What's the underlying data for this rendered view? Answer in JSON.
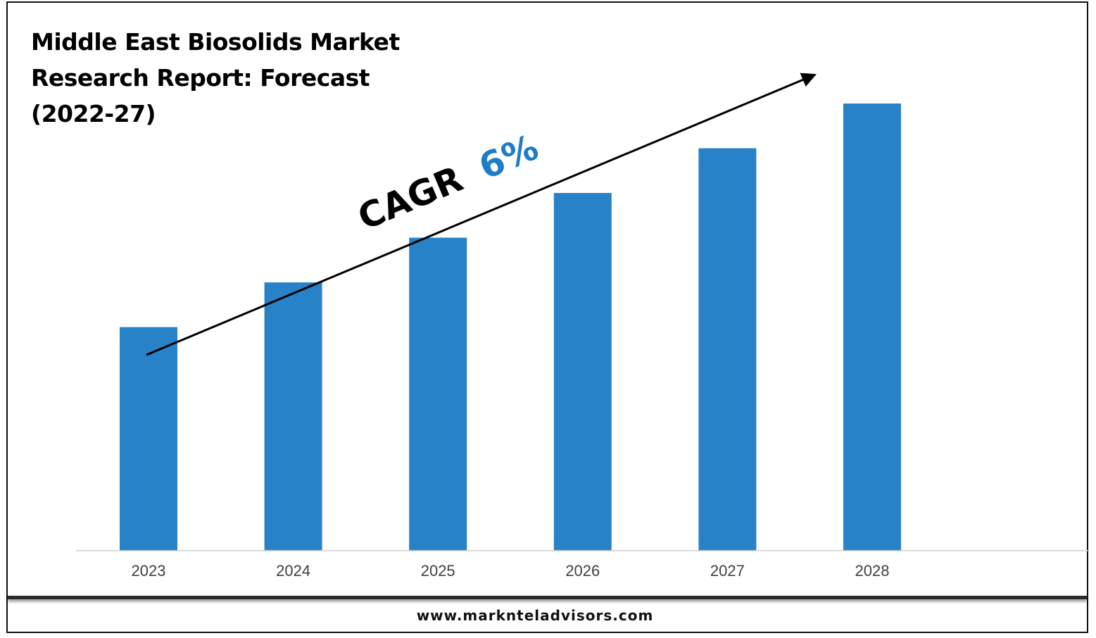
{
  "chart_data": {
    "type": "bar",
    "title": "Middle East Biosolids Market Research Report: Forecast (2022-27)",
    "title_lines": [
      "Middle East Biosolids Market",
      "Research Report: Forecast",
      "(2022-27)"
    ],
    "categories": [
      "2023",
      "2024",
      "2025",
      "2026",
      "2027",
      "2028"
    ],
    "values": [
      1.0,
      1.2,
      1.4,
      1.6,
      1.8,
      2.0
    ],
    "value_note": "relative bar heights (no y-axis printed)",
    "ylim": [
      0,
      2.0
    ],
    "xlabel": "",
    "ylabel": "",
    "grid": false,
    "bar_color": "#2882C8",
    "annotation": {
      "prefix": "CAGR",
      "value": "6%",
      "prefix_color": "#000000",
      "value_color": "#1E7CC8"
    }
  },
  "footer": {
    "website": "www.marknteladvisors.com"
  },
  "colors": {
    "background": "#ffffff",
    "frame": "#111111",
    "axis": "#d0d0d0",
    "tick_label": "#404040"
  }
}
